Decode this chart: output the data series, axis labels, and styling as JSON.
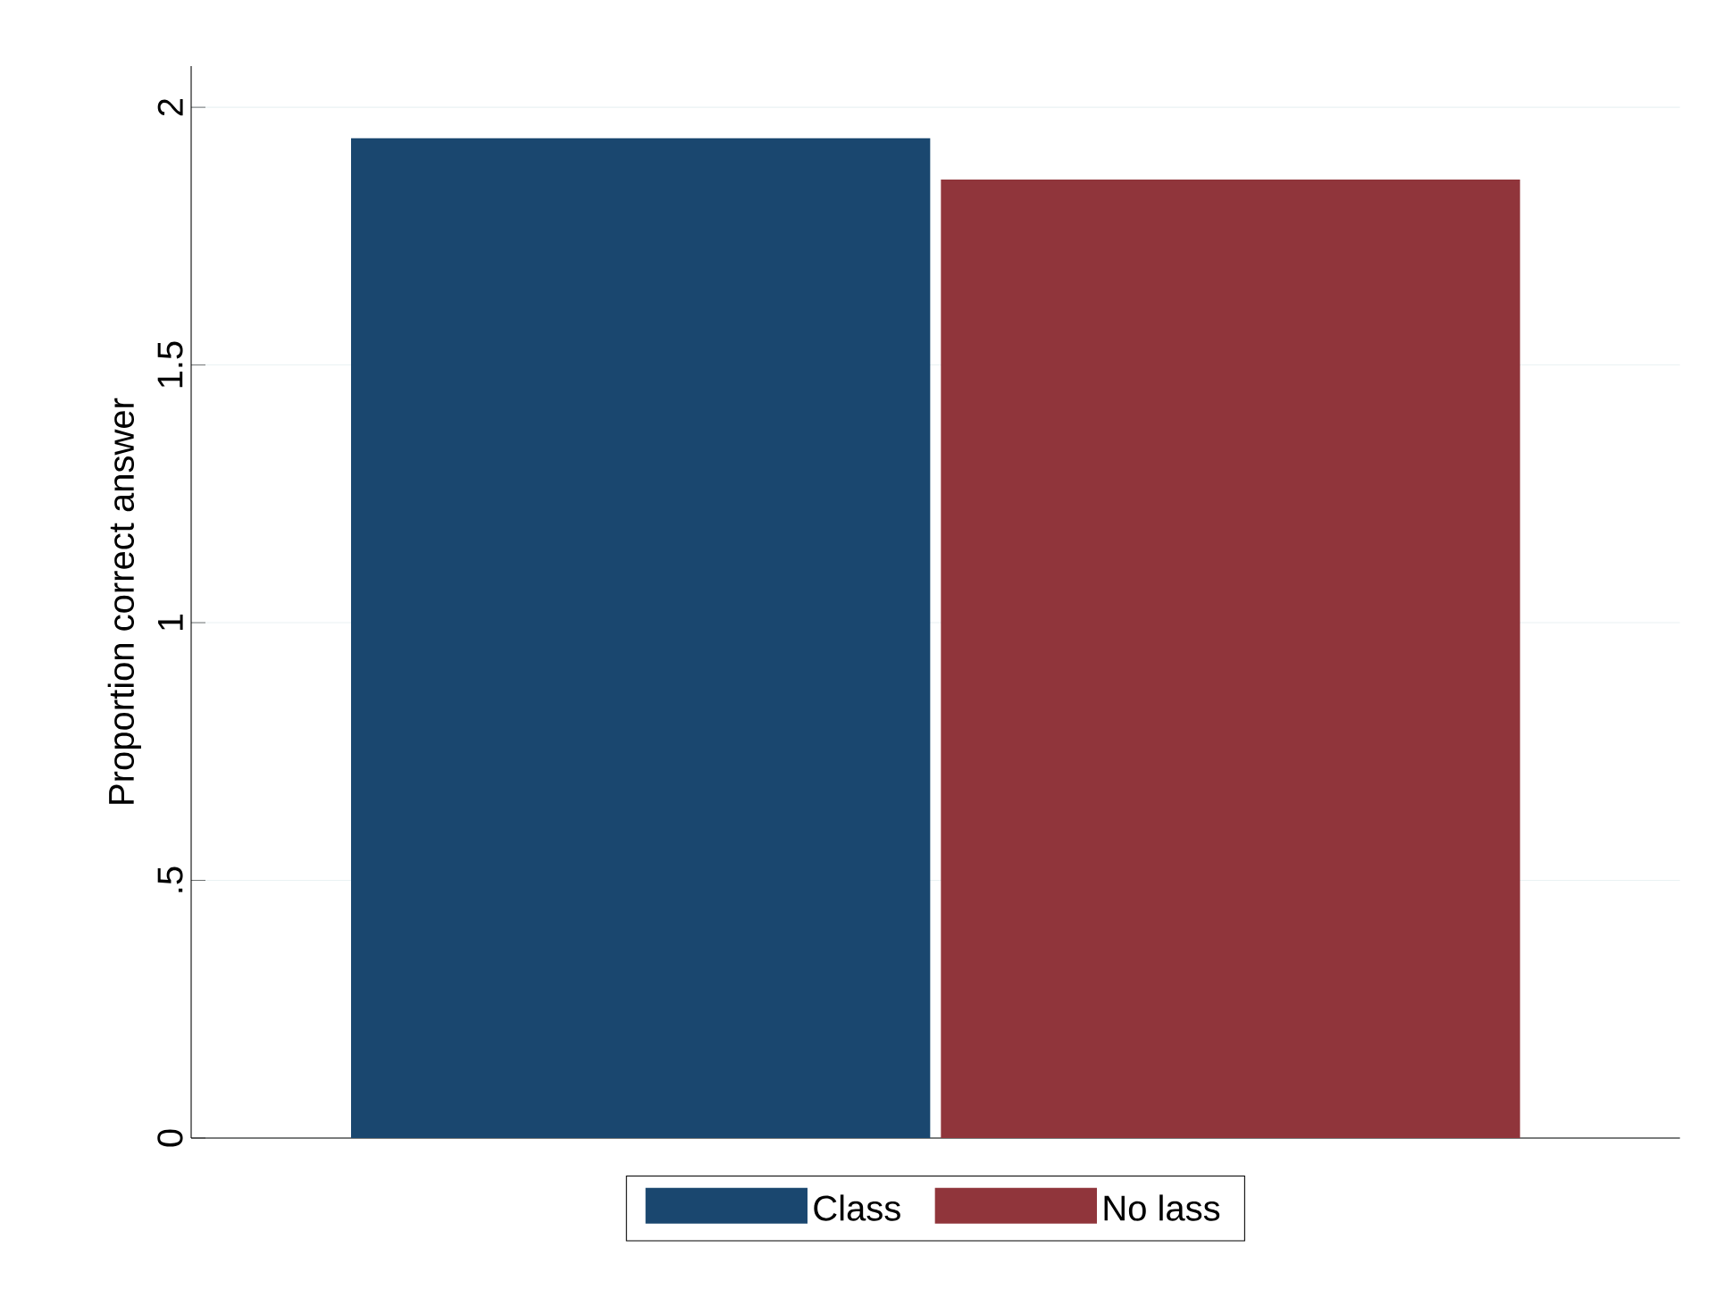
{
  "chart_data": {
    "type": "bar",
    "ylabel": "Proportion correct answer",
    "categories": [
      null
    ],
    "series": [
      {
        "name": "Class",
        "color": "#1a476f",
        "values": [
          1.94
        ]
      },
      {
        "name": "No lass",
        "color": "#90353b",
        "values": [
          1.86
        ]
      }
    ],
    "ylim": [
      0,
      2.08
    ],
    "yticks": [
      0,
      {
        "value": 0.5,
        "label": ".5"
      },
      1,
      1.5,
      2
    ],
    "grid": "y",
    "legend": "bottom"
  }
}
